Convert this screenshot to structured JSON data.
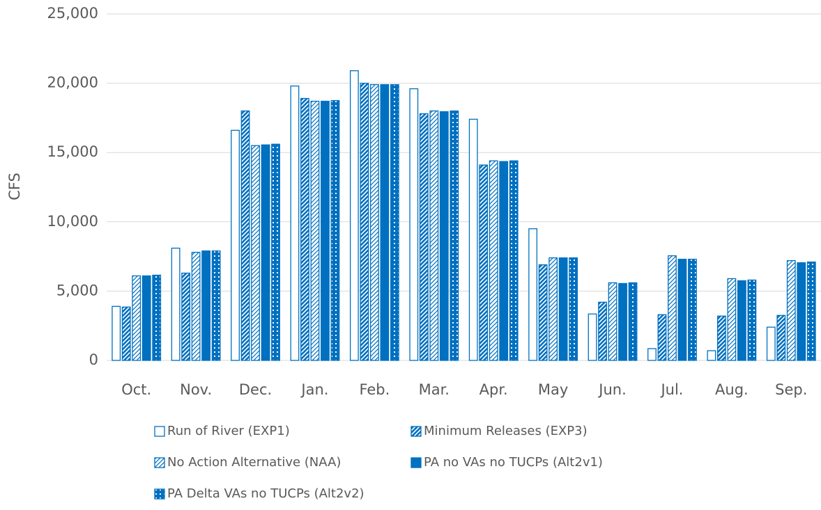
{
  "chart_data": {
    "type": "bar",
    "y_label": "CFS",
    "categories": [
      "Oct.",
      "Nov.",
      "Dec.",
      "Jan.",
      "Feb.",
      "Mar.",
      "Apr.",
      "May",
      "Jun.",
      "Jul.",
      "Aug.",
      "Sep."
    ],
    "series": [
      {
        "name": "Run of River (EXP1)",
        "color": "#0070c0",
        "values": [
          3900,
          8100,
          16600,
          19800,
          20900,
          19600,
          17400,
          9500,
          3350,
          850,
          700,
          2400
        ]
      },
      {
        "name": "Minimum Releases (EXP3)",
        "color": "#0070c0",
        "values": [
          3850,
          6300,
          18000,
          18900,
          20000,
          17800,
          14100,
          6900,
          4200,
          3300,
          3200,
          3250
        ]
      },
      {
        "name": "No Action Alternative (NAA)",
        "color": "#0070c0",
        "values": [
          6100,
          7800,
          15500,
          18700,
          19900,
          18000,
          14400,
          7400,
          5600,
          7550,
          5900,
          7200
        ]
      },
      {
        "name": "PA no VAs no TUCPs (Alt2v1)",
        "color": "#0070c0",
        "values": [
          6100,
          7900,
          15550,
          18700,
          19900,
          17950,
          14350,
          7400,
          5550,
          7300,
          5750,
          7050
        ]
      },
      {
        "name": "PA Delta VAs no TUCPs (Alt2v2)",
        "color": "#0070c0",
        "values": [
          6150,
          7900,
          15600,
          18750,
          19900,
          18000,
          14400,
          7400,
          5600,
          7300,
          5800,
          7100
        ]
      }
    ],
    "ylim": [
      0,
      25000
    ],
    "yticks": [
      0,
      {
        "value": 5000,
        "label": "5,000"
      },
      {
        "value": 10000,
        "label": "10,000"
      },
      {
        "value": 15000,
        "label": "15,000"
      },
      {
        "value": 20000,
        "label": "20,000"
      },
      {
        "value": 25000,
        "label": "25,000"
      }
    ],
    "grid": true,
    "legend": "bottom"
  }
}
